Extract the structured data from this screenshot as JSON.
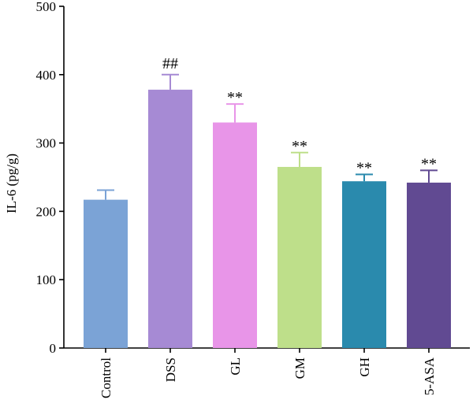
{
  "chart_data": {
    "type": "bar",
    "title": "",
    "xlabel": "",
    "ylabel": "IL-6 (pg/g)",
    "ylim": [
      0,
      500
    ],
    "yticks": [
      0,
      100,
      200,
      300,
      400,
      500
    ],
    "grid": false,
    "categories": [
      "Control",
      "DSS",
      "GL",
      "GM",
      "GH",
      "5-ASA"
    ],
    "values": [
      217,
      378,
      330,
      265,
      244,
      242
    ],
    "errors": [
      14,
      22,
      27,
      21,
      10,
      18
    ],
    "annotations": [
      "",
      "##",
      "**",
      "**",
      "**",
      "**"
    ],
    "colors": [
      "#7ba3d6",
      "#a68ad4",
      "#e895e8",
      "#bedf8a",
      "#2a8aad",
      "#614a92"
    ]
  }
}
